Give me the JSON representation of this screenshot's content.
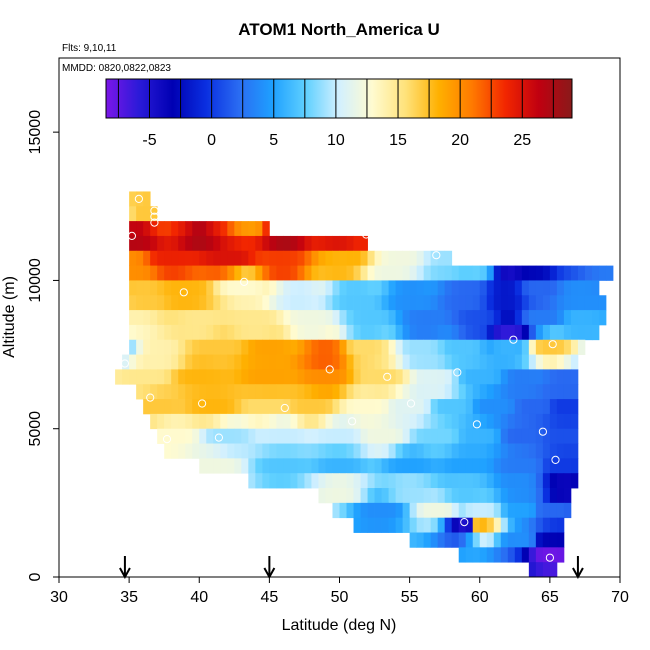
{
  "chart_data": {
    "type": "heatmap",
    "title": "ATOM1 North_America U",
    "flights_label": "Flts: 9,10,11",
    "dates_label": "MMDD: 0820,0822,0823",
    "xlabel": "Latitude (deg N)",
    "ylabel": "Altitude (m)",
    "xlim": [
      30,
      70
    ],
    "ylim": [
      0,
      17500
    ],
    "x_ticks": [
      30,
      35,
      40,
      45,
      50,
      55,
      60,
      65,
      70
    ],
    "x_tick_labels": [
      "30",
      "35",
      "40",
      "45",
      "50",
      "55",
      "60",
      "65",
      "70"
    ],
    "y_ticks": [
      0,
      5000,
      10000,
      15000
    ],
    "y_tick_labels": [
      "0",
      "5000",
      "10000",
      "15000"
    ],
    "grid": false,
    "colorbar": {
      "range": [
        -8.5,
        29
      ],
      "ticks": [
        -5,
        0,
        5,
        10,
        15,
        20,
        25
      ],
      "tick_labels": [
        "-5",
        "0",
        "5",
        "10",
        "15",
        "20",
        "25"
      ],
      "colors": [
        "#7b16e8",
        "#2a1ad8",
        "#0000b3",
        "#0a2fe0",
        "#2a6cf2",
        "#1ea0ff",
        "#5fd0ff",
        "#d2f0ff",
        "#fffbd0",
        "#ffe27a",
        "#ffb000",
        "#ff7a00",
        "#f22600",
        "#c00010",
        "#8a1a1a"
      ]
    },
    "lat_markers": [
      34.7,
      45.0,
      67.0
    ],
    "cell": {
      "dlat": 0.5,
      "dalt": 500
    },
    "anchors": [
      {
        "lat": 35,
        "alt": 12300,
        "u": 16
      },
      {
        "lat": 36,
        "alt": 12300,
        "u": 17
      },
      {
        "lat": 40,
        "alt": 12000,
        "u": 19
      },
      {
        "lat": 44,
        "alt": 12000,
        "u": 19
      },
      {
        "lat": 35.5,
        "alt": 11500,
        "u": 27
      },
      {
        "lat": 40,
        "alt": 11600,
        "u": 28
      },
      {
        "lat": 46,
        "alt": 11700,
        "u": 29
      },
      {
        "lat": 50,
        "alt": 11500,
        "u": 25
      },
      {
        "lat": 52,
        "alt": 11500,
        "u": 24
      },
      {
        "lat": 55,
        "alt": 11500,
        "u": 14
      },
      {
        "lat": 58,
        "alt": 11500,
        "u": 12
      },
      {
        "lat": 35,
        "alt": 10500,
        "u": 20
      },
      {
        "lat": 38,
        "alt": 10700,
        "u": 24
      },
      {
        "lat": 42,
        "alt": 10700,
        "u": 25
      },
      {
        "lat": 46,
        "alt": 10500,
        "u": 23
      },
      {
        "lat": 50,
        "alt": 10500,
        "u": 18
      },
      {
        "lat": 54,
        "alt": 10500,
        "u": 12
      },
      {
        "lat": 58,
        "alt": 10700,
        "u": 9
      },
      {
        "lat": 60,
        "alt": 10500,
        "u": 8
      },
      {
        "lat": 62,
        "alt": 10500,
        "u": -5
      },
      {
        "lat": 64,
        "alt": 10500,
        "u": -3
      },
      {
        "lat": 66,
        "alt": 10700,
        "u": 1
      },
      {
        "lat": 69,
        "alt": 10700,
        "u": 3
      },
      {
        "lat": 36,
        "alt": 9500,
        "u": 17
      },
      {
        "lat": 39,
        "alt": 9500,
        "u": 18
      },
      {
        "lat": 43,
        "alt": 9800,
        "u": 13
      },
      {
        "lat": 47,
        "alt": 9500,
        "u": 10
      },
      {
        "lat": 51,
        "alt": 9500,
        "u": 7
      },
      {
        "lat": 55,
        "alt": 9500,
        "u": 4
      },
      {
        "lat": 59,
        "alt": 9500,
        "u": 2
      },
      {
        "lat": 62,
        "alt": 9500,
        "u": -2
      },
      {
        "lat": 64,
        "alt": 9600,
        "u": 2
      },
      {
        "lat": 67,
        "alt": 9500,
        "u": 4
      },
      {
        "lat": 35,
        "alt": 8700,
        "u": 14
      },
      {
        "lat": 40,
        "alt": 8500,
        "u": 15
      },
      {
        "lat": 44,
        "alt": 8500,
        "u": 15
      },
      {
        "lat": 48,
        "alt": 8500,
        "u": 12
      },
      {
        "lat": 52,
        "alt": 8500,
        "u": 7
      },
      {
        "lat": 56,
        "alt": 8500,
        "u": 3
      },
      {
        "lat": 60,
        "alt": 8500,
        "u": 1
      },
      {
        "lat": 62,
        "alt": 8300,
        "u": -6
      },
      {
        "lat": 64.5,
        "alt": 8700,
        "u": 3
      },
      {
        "lat": 67,
        "alt": 8500,
        "u": 6
      },
      {
        "lat": 34,
        "alt": 7700,
        "u": 8
      },
      {
        "lat": 37,
        "alt": 7500,
        "u": 14
      },
      {
        "lat": 41,
        "alt": 7800,
        "u": 17
      },
      {
        "lat": 45,
        "alt": 7600,
        "u": 19
      },
      {
        "lat": 49,
        "alt": 7500,
        "u": 22
      },
      {
        "lat": 52,
        "alt": 7600,
        "u": 16
      },
      {
        "lat": 56,
        "alt": 7500,
        "u": 9
      },
      {
        "lat": 59,
        "alt": 7600,
        "u": 7
      },
      {
        "lat": 62,
        "alt": 7700,
        "u": 6
      },
      {
        "lat": 65,
        "alt": 7700,
        "u": 17
      },
      {
        "lat": 36,
        "alt": 6700,
        "u": 15
      },
      {
        "lat": 40,
        "alt": 6800,
        "u": 18
      },
      {
        "lat": 45,
        "alt": 6700,
        "u": 19
      },
      {
        "lat": 49,
        "alt": 6700,
        "u": 20
      },
      {
        "lat": 53,
        "alt": 6700,
        "u": 16
      },
      {
        "lat": 57,
        "alt": 6500,
        "u": 11
      },
      {
        "lat": 60,
        "alt": 6700,
        "u": 6
      },
      {
        "lat": 63,
        "alt": 6500,
        "u": 3
      },
      {
        "lat": 66,
        "alt": 6500,
        "u": 2
      },
      {
        "lat": 37,
        "alt": 5800,
        "u": 17
      },
      {
        "lat": 41,
        "alt": 5800,
        "u": 18
      },
      {
        "lat": 45,
        "alt": 5800,
        "u": 16
      },
      {
        "lat": 48,
        "alt": 5700,
        "u": 17
      },
      {
        "lat": 52,
        "alt": 5700,
        "u": 13
      },
      {
        "lat": 55,
        "alt": 5700,
        "u": 11
      },
      {
        "lat": 58,
        "alt": 5800,
        "u": 7
      },
      {
        "lat": 61,
        "alt": 5800,
        "u": 4
      },
      {
        "lat": 64,
        "alt": 5700,
        "u": 2
      },
      {
        "lat": 66,
        "alt": 5600,
        "u": 0
      },
      {
        "lat": 38,
        "alt": 4800,
        "u": 13
      },
      {
        "lat": 42,
        "alt": 4700,
        "u": 9
      },
      {
        "lat": 46,
        "alt": 4800,
        "u": 10
      },
      {
        "lat": 50,
        "alt": 4800,
        "u": 10
      },
      {
        "lat": 53,
        "alt": 4700,
        "u": 12
      },
      {
        "lat": 57,
        "alt": 4700,
        "u": 8
      },
      {
        "lat": 60,
        "alt": 4700,
        "u": 6
      },
      {
        "lat": 63,
        "alt": 4800,
        "u": 2
      },
      {
        "lat": 66,
        "alt": 4800,
        "u": 1
      },
      {
        "lat": 41,
        "alt": 3800,
        "u": 12
      },
      {
        "lat": 46,
        "alt": 3800,
        "u": 7
      },
      {
        "lat": 50,
        "alt": 3800,
        "u": 6
      },
      {
        "lat": 55,
        "alt": 3800,
        "u": 5
      },
      {
        "lat": 59,
        "alt": 3800,
        "u": 5
      },
      {
        "lat": 63,
        "alt": 3800,
        "u": 3
      },
      {
        "lat": 66,
        "alt": 3800,
        "u": 0
      },
      {
        "lat": 50,
        "alt": 3000,
        "u": 12
      },
      {
        "lat": 55,
        "alt": 3000,
        "u": 9
      },
      {
        "lat": 59,
        "alt": 3000,
        "u": 7
      },
      {
        "lat": 63,
        "alt": 3000,
        "u": 4
      },
      {
        "lat": 66,
        "alt": 3000,
        "u": -4
      },
      {
        "lat": 53,
        "alt": 2200,
        "u": 4
      },
      {
        "lat": 57,
        "alt": 2200,
        "u": 12
      },
      {
        "lat": 60,
        "alt": 2200,
        "u": 10
      },
      {
        "lat": 63,
        "alt": 2200,
        "u": 5
      },
      {
        "lat": 65,
        "alt": 2200,
        "u": 2
      },
      {
        "lat": 59,
        "alt": 1700,
        "u": -5
      },
      {
        "lat": 60,
        "alt": 1700,
        "u": 18
      },
      {
        "lat": 63,
        "alt": 1300,
        "u": 4
      },
      {
        "lat": 65,
        "alt": 1300,
        "u": -3
      },
      {
        "lat": 65,
        "alt": 800,
        "u": -8
      }
    ],
    "profile_edges": [
      {
        "alt": 13000,
        "min": 35,
        "max": 36.5
      },
      {
        "alt": 12500,
        "min": 35,
        "max": 37
      },
      {
        "alt": 12000,
        "min": 35,
        "max": 45
      },
      {
        "alt": 11500,
        "min": 35,
        "max": 52
      },
      {
        "alt": 11000,
        "min": 35,
        "max": 58
      },
      {
        "alt": 10500,
        "min": 35,
        "max": 69.5
      },
      {
        "alt": 10000,
        "min": 35,
        "max": 68.5
      },
      {
        "alt": 9500,
        "min": 35,
        "max": 69
      },
      {
        "alt": 9000,
        "min": 35,
        "max": 69
      },
      {
        "alt": 8500,
        "min": 35,
        "max": 68.5
      },
      {
        "alt": 8000,
        "min": 35,
        "max": 67.5
      },
      {
        "alt": 7500,
        "min": 34.5,
        "max": 67
      },
      {
        "alt": 7000,
        "min": 34,
        "max": 67
      },
      {
        "alt": 6500,
        "min": 35.5,
        "max": 67
      },
      {
        "alt": 6000,
        "min": 36,
        "max": 67
      },
      {
        "alt": 5500,
        "min": 36.5,
        "max": 67
      },
      {
        "alt": 5000,
        "min": 37,
        "max": 67
      },
      {
        "alt": 4500,
        "min": 37.5,
        "max": 67
      },
      {
        "alt": 4000,
        "min": 40,
        "max": 67
      },
      {
        "alt": 3500,
        "min": 43.5,
        "max": 67
      },
      {
        "alt": 3000,
        "min": 48.5,
        "max": 66.5
      },
      {
        "alt": 2500,
        "min": 49.5,
        "max": 66.5
      },
      {
        "alt": 2000,
        "min": 51,
        "max": 66
      },
      {
        "alt": 1500,
        "min": 55,
        "max": 66
      },
      {
        "alt": 1000,
        "min": 58.5,
        "max": 66
      },
      {
        "alt": 500,
        "min": 63.5,
        "max": 65.5
      }
    ],
    "observation_points": [
      [
        35.7,
        12750
      ],
      [
        36.8,
        12350
      ],
      [
        36.8,
        12150
      ],
      [
        36.8,
        11950
      ],
      [
        35.2,
        11500
      ],
      [
        49.6,
        11750
      ],
      [
        51.9,
        11550
      ],
      [
        56.9,
        10850
      ],
      [
        61.1,
        10650
      ],
      [
        70,
        10900
      ],
      [
        38.9,
        9600
      ],
      [
        43.2,
        9950
      ],
      [
        62.4,
        8000
      ],
      [
        65.2,
        7850
      ],
      [
        34.7,
        7200
      ],
      [
        49.3,
        7000
      ],
      [
        53.4,
        6750
      ],
      [
        58.4,
        6900
      ],
      [
        36.5,
        6050
      ],
      [
        40.2,
        5850
      ],
      [
        46.1,
        5700
      ],
      [
        50.9,
        5250
      ],
      [
        55.1,
        5850
      ],
      [
        59.8,
        5150
      ],
      [
        64.5,
        4900
      ],
      [
        37.7,
        4650
      ],
      [
        41.4,
        4700
      ],
      [
        65.4,
        3950
      ],
      [
        58.9,
        1850
      ],
      [
        65.0,
        650
      ]
    ]
  }
}
